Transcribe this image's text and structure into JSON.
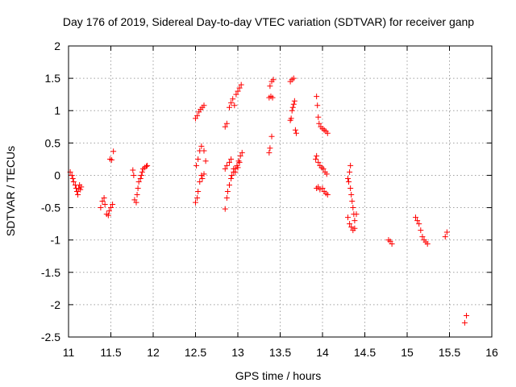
{
  "chart_data": {
    "type": "scatter",
    "title": "Day 176 of 2019, Sidereal Day-to-day VTEC variation (SDTVAR) for receiver ganp",
    "xlabel": "GPS time / hours",
    "ylabel": "SDTVAR / TECUs",
    "xlim": [
      11,
      16
    ],
    "ylim": [
      -2.5,
      2
    ],
    "xticks": [
      11,
      11.5,
      12,
      12.5,
      13,
      13.5,
      14,
      14.5,
      15,
      15.5,
      16
    ],
    "yticks": [
      2,
      1.5,
      1,
      0.5,
      0,
      -0.5,
      -1,
      -1.5,
      -2,
      -2.5
    ],
    "xtick_labels": [
      "11",
      "11.5",
      "12",
      "12.5",
      "13",
      "13.5",
      "14",
      "14.5",
      "15",
      "15.5",
      "16"
    ],
    "ytick_labels": [
      "2",
      "1.5",
      "1",
      "0.5",
      "0",
      "-0.5",
      "-1",
      "-1.5",
      "-2",
      "-2.5"
    ],
    "grid": true,
    "marker": "plus",
    "color": "#ff0000",
    "series": [
      {
        "name": "SDTVAR",
        "points": [
          [
            11.02,
            0.05
          ],
          [
            11.04,
            0.0
          ],
          [
            11.05,
            -0.05
          ],
          [
            11.06,
            -0.1
          ],
          [
            11.08,
            -0.15
          ],
          [
            11.09,
            -0.2
          ],
          [
            11.1,
            -0.25
          ],
          [
            11.11,
            -0.3
          ],
          [
            11.12,
            -0.2
          ],
          [
            11.13,
            -0.15
          ],
          [
            11.14,
            -0.22
          ],
          [
            11.15,
            -0.18
          ],
          [
            11.38,
            -0.5
          ],
          [
            11.4,
            -0.4
          ],
          [
            11.42,
            -0.35
          ],
          [
            11.43,
            -0.45
          ],
          [
            11.45,
            -0.6
          ],
          [
            11.47,
            -0.62
          ],
          [
            11.48,
            -0.55
          ],
          [
            11.5,
            -0.5
          ],
          [
            11.52,
            -0.45
          ],
          [
            11.49,
            0.25
          ],
          [
            11.51,
            0.24
          ],
          [
            11.53,
            0.37
          ],
          [
            11.76,
            0.08
          ],
          [
            11.77,
            0.0
          ],
          [
            11.78,
            -0.38
          ],
          [
            11.8,
            -0.42
          ],
          [
            11.81,
            -0.3
          ],
          [
            11.82,
            -0.2
          ],
          [
            11.83,
            -0.1
          ],
          [
            11.85,
            -0.05
          ],
          [
            11.86,
            0.0
          ],
          [
            11.87,
            0.05
          ],
          [
            11.88,
            0.1
          ],
          [
            11.9,
            0.12
          ],
          [
            11.92,
            0.14
          ],
          [
            11.93,
            0.15
          ],
          [
            12.5,
            -0.42
          ],
          [
            12.52,
            -0.35
          ],
          [
            12.53,
            -0.25
          ],
          [
            12.55,
            -0.1
          ],
          [
            12.57,
            0.0
          ],
          [
            12.58,
            -0.05
          ],
          [
            12.6,
            0.02
          ],
          [
            12.51,
            0.15
          ],
          [
            12.53,
            0.25
          ],
          [
            12.55,
            0.38
          ],
          [
            12.57,
            0.45
          ],
          [
            12.6,
            0.38
          ],
          [
            12.62,
            0.22
          ],
          [
            12.5,
            0.88
          ],
          [
            12.52,
            0.92
          ],
          [
            12.54,
            0.98
          ],
          [
            12.56,
            1.02
          ],
          [
            12.58,
            1.05
          ],
          [
            12.6,
            1.08
          ],
          [
            12.85,
            -0.52
          ],
          [
            12.87,
            -0.35
          ],
          [
            12.88,
            -0.25
          ],
          [
            12.9,
            -0.15
          ],
          [
            12.92,
            -0.05
          ],
          [
            12.93,
            0.0
          ],
          [
            12.95,
            0.05
          ],
          [
            12.97,
            0.1
          ],
          [
            12.99,
            0.15
          ],
          [
            13.01,
            0.22
          ],
          [
            13.03,
            0.3
          ],
          [
            13.05,
            0.35
          ],
          [
            12.85,
            0.1
          ],
          [
            12.87,
            0.15
          ],
          [
            12.9,
            0.2
          ],
          [
            12.92,
            0.25
          ],
          [
            12.95,
            0.1
          ],
          [
            12.97,
            0.05
          ],
          [
            13.0,
            0.12
          ],
          [
            13.02,
            0.2
          ],
          [
            12.85,
            0.75
          ],
          [
            12.87,
            0.8
          ],
          [
            12.9,
            1.05
          ],
          [
            12.92,
            1.12
          ],
          [
            12.94,
            1.18
          ],
          [
            12.96,
            1.08
          ],
          [
            12.98,
            1.25
          ],
          [
            13.0,
            1.3
          ],
          [
            13.02,
            1.35
          ],
          [
            13.04,
            1.4
          ],
          [
            13.37,
            0.35
          ],
          [
            13.38,
            0.42
          ],
          [
            13.4,
            0.6
          ],
          [
            13.37,
            1.2
          ],
          [
            13.39,
            1.22
          ],
          [
            13.41,
            1.2
          ],
          [
            13.38,
            1.38
          ],
          [
            13.4,
            1.45
          ],
          [
            13.42,
            1.48
          ],
          [
            13.62,
            0.85
          ],
          [
            13.63,
            0.88
          ],
          [
            13.64,
            1.0
          ],
          [
            13.65,
            1.05
          ],
          [
            13.66,
            1.1
          ],
          [
            13.67,
            1.15
          ],
          [
            13.68,
            0.7
          ],
          [
            13.69,
            0.65
          ],
          [
            13.62,
            1.45
          ],
          [
            13.64,
            1.48
          ],
          [
            13.66,
            1.5
          ],
          [
            13.92,
            0.25
          ],
          [
            13.93,
            0.3
          ],
          [
            13.95,
            0.2
          ],
          [
            13.97,
            0.15
          ],
          [
            13.99,
            0.12
          ],
          [
            14.01,
            0.1
          ],
          [
            14.03,
            0.05
          ],
          [
            14.05,
            0.02
          ],
          [
            13.93,
            -0.2
          ],
          [
            13.95,
            -0.18
          ],
          [
            13.97,
            -0.22
          ],
          [
            14.0,
            -0.2
          ],
          [
            14.02,
            -0.25
          ],
          [
            14.04,
            -0.28
          ],
          [
            14.06,
            -0.3
          ],
          [
            13.93,
            1.22
          ],
          [
            13.94,
            1.08
          ],
          [
            13.95,
            0.9
          ],
          [
            13.96,
            0.8
          ],
          [
            13.98,
            0.75
          ],
          [
            14.0,
            0.72
          ],
          [
            14.02,
            0.7
          ],
          [
            14.04,
            0.68
          ],
          [
            14.06,
            0.65
          ],
          [
            14.3,
            -0.05
          ],
          [
            14.31,
            -0.1
          ],
          [
            14.33,
            -0.2
          ],
          [
            14.34,
            -0.3
          ],
          [
            14.35,
            -0.4
          ],
          [
            14.36,
            -0.5
          ],
          [
            14.37,
            -0.6
          ],
          [
            14.38,
            -0.7
          ],
          [
            14.32,
            0.05
          ],
          [
            14.33,
            0.15
          ],
          [
            14.3,
            -0.65
          ],
          [
            14.32,
            -0.75
          ],
          [
            14.34,
            -0.8
          ],
          [
            14.36,
            -0.85
          ],
          [
            14.38,
            -0.82
          ],
          [
            14.4,
            -0.6
          ],
          [
            14.78,
            -1.0
          ],
          [
            14.8,
            -1.02
          ],
          [
            14.82,
            -1.06
          ],
          [
            15.1,
            -0.65
          ],
          [
            15.12,
            -0.7
          ],
          [
            15.14,
            -0.75
          ],
          [
            15.16,
            -0.85
          ],
          [
            15.18,
            -0.95
          ],
          [
            15.2,
            -1.0
          ],
          [
            15.22,
            -1.03
          ],
          [
            15.24,
            -1.06
          ],
          [
            15.45,
            -0.95
          ],
          [
            15.47,
            -0.88
          ],
          [
            15.68,
            -2.28
          ],
          [
            15.7,
            -2.17
          ]
        ]
      }
    ]
  }
}
